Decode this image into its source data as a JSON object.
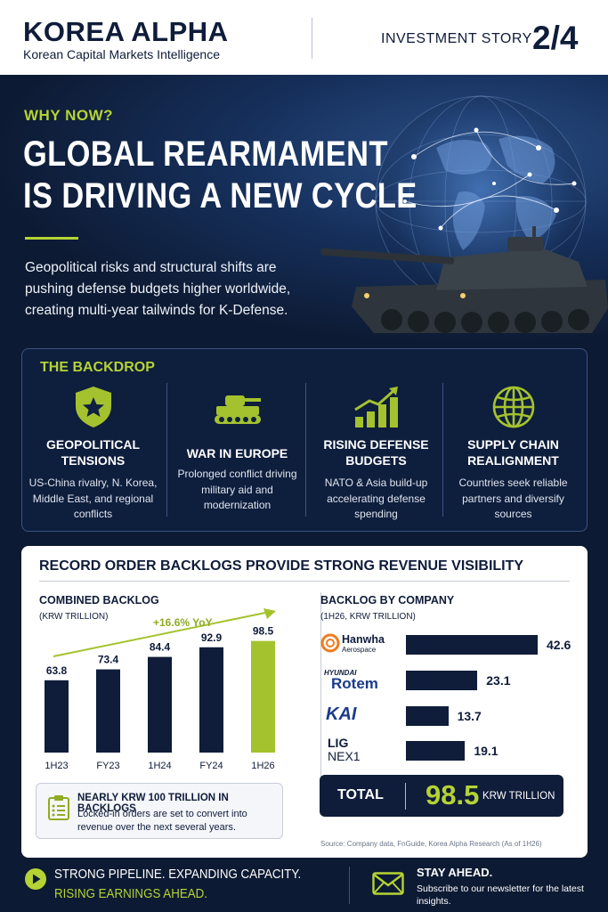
{
  "header": {
    "brand": "KOREA ALPHA",
    "tagline": "Korean Capital Markets Intelligence",
    "story_label": "INVESTMENT STORY",
    "page": "2/4"
  },
  "hero": {
    "kicker": "WHY NOW?",
    "title_line1": "GLOBAL REARMAMENT",
    "title_line2": "IS DRIVING A NEW CYCLE",
    "body": "Geopolitical risks and structural shifts are pushing defense budgets higher worldwide, creating multi-year tailwinds for K-Defense."
  },
  "backdrop": {
    "title": "THE BACKDROP",
    "items": [
      {
        "icon": "shield-star-icon",
        "heading": "GEOPOLITICAL TENSIONS",
        "text": "US-China rivalry, N. Korea, Middle East, and regional conflicts"
      },
      {
        "icon": "tank-icon",
        "heading": "WAR IN EUROPE",
        "text": "Prolonged conflict driving military aid and modernization"
      },
      {
        "icon": "rising-bars-icon",
        "heading": "RISING DEFENSE BUDGETS",
        "text": "NATO & Asia build-up accelerating defense spending"
      },
      {
        "icon": "globe-icon",
        "heading": "SUPPLY CHAIN REALIGNMENT",
        "text": "Countries seek reliable partners and diversify sources"
      }
    ]
  },
  "backlog": {
    "title": "RECORD ORDER BACKLOGS PROVIDE STRONG REVENUE VISIBILITY",
    "left_title": "COMBINED BACKLOG",
    "left_unit": "(KRW TRILLION)",
    "right_title": "BACKLOG BY COMPANY",
    "right_unit": "(1H26, KRW TRILLION)",
    "callout_head": "NEARLY KRW 100 TRILLION IN BACKLOGS",
    "callout_text": "Locked-in orders are set to convert into revenue over the next several years.",
    "total_label": "TOTAL",
    "total_value": "98.5",
    "total_unit": "KRW TRILLION",
    "source": "Source: Company data, FnGuide, Korea Alpha Research (As of 1H26)",
    "companies": {
      "hanwha": "Hanwha",
      "hanwha_sub": "Aerospace",
      "hyundai": "HYUNDAI",
      "rotem": "Rotem",
      "kai": "KAI",
      "lig": "LIG",
      "nex": "NEX1"
    }
  },
  "chart_data": [
    {
      "type": "bar",
      "title": "COMBINED BACKLOG",
      "ylabel": "(KRW TRILLION)",
      "categories": [
        "1H23",
        "FY23",
        "1H24",
        "FY24",
        "1H26"
      ],
      "values": [
        63.8,
        73.4,
        84.4,
        92.9,
        98.5
      ],
      "labels": [
        "63.8",
        "73.4",
        "84.4",
        "92.9",
        "98.5"
      ],
      "annotation": "+16.6% YoY",
      "ylim": [
        0,
        110
      ],
      "colors": {
        "default": "#0f1c3a",
        "highlight": "#a4c22e"
      },
      "highlight_index": 4
    },
    {
      "type": "bar",
      "orientation": "horizontal",
      "title": "BACKLOG BY COMPANY",
      "ylabel": "(1H26, KRW TRILLION)",
      "categories": [
        "Hanwha Aerospace",
        "Hyundai Rotem",
        "KAI",
        "LIG NEX1"
      ],
      "values": [
        42.6,
        23.1,
        13.7,
        19.1
      ],
      "labels": [
        "42.6",
        "23.1",
        "13.7",
        "19.1"
      ],
      "xlim": [
        0,
        45
      ],
      "total": 98.5
    }
  ],
  "footer": {
    "line1": "STRONG PIPELINE. EXPANDING CAPACITY.",
    "line2": "RISING EARNINGS AHEAD.",
    "cta_title": "STAY AHEAD.",
    "cta_text": "Subscribe to our newsletter for the latest insights."
  },
  "colors": {
    "navy": "#0f1c3a",
    "accent": "#b5d334",
    "background": "#0d1a33"
  }
}
